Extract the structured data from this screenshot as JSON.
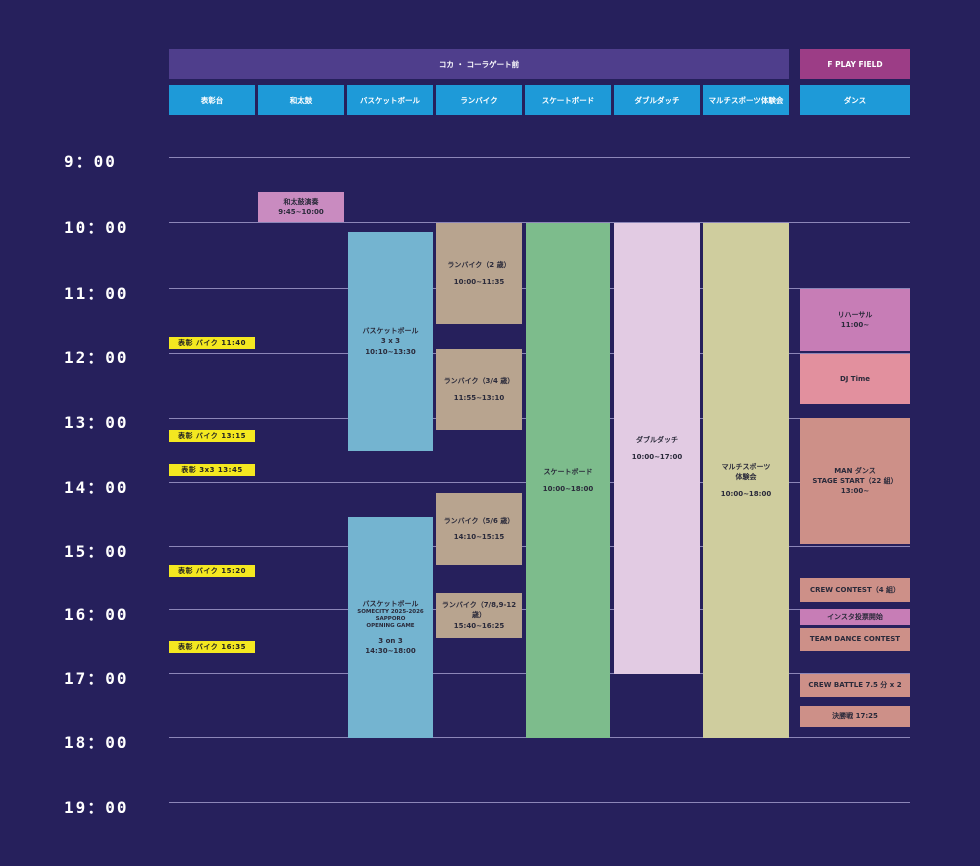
{
  "colors": {
    "background": "#26205c",
    "venue_main": "#4f3e8c",
    "venue_field": "#9c3d86",
    "column_header": "#1e9ad8",
    "gridline": "#8c86b8",
    "tag_yellow": "#f4e820"
  },
  "venues": {
    "main": "コカ ・ コーラゲート前",
    "field": "F PLAY FIELD"
  },
  "columns": [
    "表彰台",
    "和太鼓",
    "バスケットボール",
    "ランバイク",
    "スケートボード",
    "ダブルダッチ",
    "マルチスポーツ体験会",
    "ダンス"
  ],
  "times": [
    "9：00",
    "10：00",
    "11：00",
    "12：00",
    "13：00",
    "14：00",
    "15：00",
    "16：00",
    "17：00",
    "18：00",
    "19：00"
  ],
  "awards": [
    {
      "label": "表彰  バイク  11:40"
    },
    {
      "label": "表彰  バイク  13:15"
    },
    {
      "label": "表彰  3x3  13:45"
    },
    {
      "label": "表彰  バイク  15:20"
    },
    {
      "label": "表彰  バイク  16:35"
    }
  ],
  "taiko": {
    "title": "和太鼓演奏",
    "time": "9:45~10:00"
  },
  "basketball": [
    {
      "title": "バスケットボール",
      "sub": "3 x 3",
      "time": "10:10~13:30"
    },
    {
      "title": "バスケットボール",
      "sub": "SOMECITY 2025-2026\nSAPPORO\nOPENING GAME",
      "format": "3 on 3",
      "time": "14:30~18:00"
    }
  ],
  "runbike": [
    {
      "title": "ランバイク（2 歳）",
      "time": "10:00~11:35"
    },
    {
      "title": "ランバイク（3/4 歳）",
      "time": "11:55~13:10"
    },
    {
      "title": "ランバイク（5/6 歳）",
      "time": "14:10~15:15"
    },
    {
      "title": "ランバイク（7/8,9-12 歳）",
      "time": "15:40~16:25"
    }
  ],
  "skateboard": {
    "title": "スケートボード",
    "time": "10:00~18:00"
  },
  "doubledutch": {
    "title": "ダブルダッチ",
    "time": "10:00~17:00"
  },
  "multisport": {
    "title": "マルチスポーツ\n体験会",
    "time": "10:00~18:00"
  },
  "dance": [
    {
      "title": "リハーサル",
      "time": "11:00~"
    },
    {
      "title": "DJ  Time"
    },
    {
      "title": "MAN ダンス",
      "sub": "STAGE START（22 組）",
      "time": "13:00~"
    },
    {
      "title": "CREW CONTEST（4 組）"
    },
    {
      "title": "インスタ投票開始"
    },
    {
      "title": "TEAM DANCE CONTEST"
    },
    {
      "title": "CREW BATTLE  7.5 分 x 2"
    },
    {
      "title": "決勝戦  17:25"
    }
  ]
}
